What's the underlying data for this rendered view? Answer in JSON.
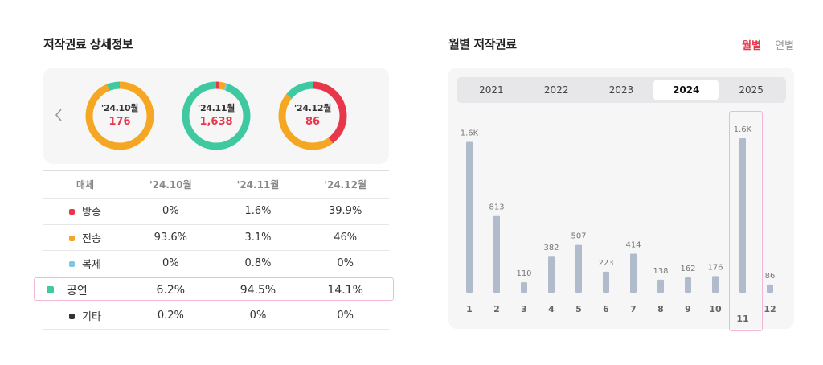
{
  "left": {
    "title": "저작권료 상세정보",
    "donuts": [
      {
        "month": "'24.10월",
        "value": "176",
        "segments": [
          0,
          93.6,
          0,
          6.2,
          0.2
        ]
      },
      {
        "month": "'24.11월",
        "value": "1,638",
        "segments": [
          1.6,
          3.1,
          0.8,
          94.5,
          0
        ]
      },
      {
        "month": "'24.12월",
        "value": "86",
        "segments": [
          39.9,
          46,
          0,
          14.1,
          0
        ]
      }
    ],
    "segment_colors": [
      "#e8374a",
      "#f5a623",
      "#7cc7e8",
      "#3ec9a0",
      "#333333"
    ],
    "table": {
      "headers": [
        "매체",
        "'24.10월",
        "'24.11월",
        "'24.12월"
      ],
      "rows": [
        {
          "name": "방송",
          "color": "#e8374a",
          "v": [
            "0%",
            "1.6%",
            "39.9%"
          ]
        },
        {
          "name": "전송",
          "color": "#f5a623",
          "v": [
            "93.6%",
            "3.1%",
            "46%"
          ]
        },
        {
          "name": "복제",
          "color": "#7cc7e8",
          "v": [
            "0%",
            "0.8%",
            "0%"
          ]
        },
        {
          "name": "공연",
          "color": "#3ec9a0",
          "v": [
            "6.2%",
            "94.5%",
            "14.1%"
          ]
        },
        {
          "name": "기타",
          "color": "#333333",
          "v": [
            "0.2%",
            "0%",
            "0%"
          ]
        }
      ]
    }
  },
  "right": {
    "title": "월별 저작권료",
    "toggle": {
      "active": "월별",
      "inactive": "연별"
    },
    "years": [
      "2021",
      "2022",
      "2023",
      "2024",
      "2025"
    ],
    "active_year": "2024"
  },
  "chart_data": {
    "type": "bar",
    "title": "월별 저작권료",
    "categories": [
      "1",
      "2",
      "3",
      "4",
      "5",
      "6",
      "7",
      "8",
      "9",
      "10",
      "11",
      "12"
    ],
    "values": [
      1600,
      813,
      110,
      382,
      507,
      223,
      414,
      138,
      162,
      176,
      1638,
      86
    ],
    "value_labels": [
      "1.6K",
      "813",
      "110",
      "382",
      "507",
      "223",
      "414",
      "138",
      "162",
      "176",
      "1.6K",
      "86"
    ],
    "highlight_category": "11",
    "bar_color": "#b0bccb",
    "ylim": [
      0,
      1638
    ]
  }
}
